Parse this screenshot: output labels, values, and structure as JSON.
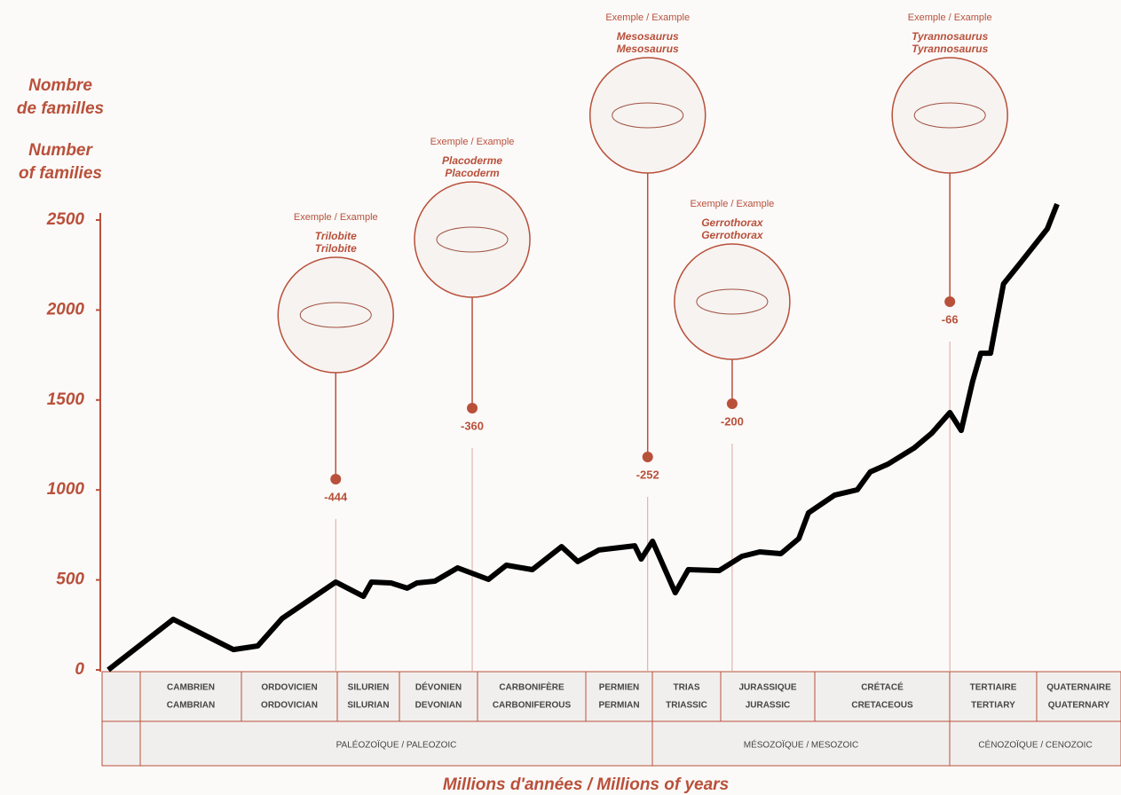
{
  "chart_data": {
    "type": "line",
    "y_label_fr": [
      "Nombre",
      "de familles"
    ],
    "y_label_en": [
      "Number",
      "of families"
    ],
    "x_label": "Millions d'années / Millions of years",
    "ylim": [
      0,
      2500
    ],
    "yticks": [
      0,
      500,
      1000,
      1500,
      2000,
      2500
    ],
    "xlim": [
      -584,
      0
    ],
    "color": "#000000",
    "x": [
      -584,
      -544,
      -507,
      -492,
      -477,
      -444,
      -427,
      -422,
      -410,
      -400,
      -394,
      -383,
      -369,
      -350,
      -339,
      -323,
      -305,
      -295,
      -282,
      -260,
      -256,
      -249,
      -235,
      -227,
      -208,
      -194,
      -183,
      -170,
      -159,
      -153,
      -137,
      -123,
      -115,
      -104,
      -88,
      -77,
      -66,
      -59,
      -52,
      -47,
      -41,
      -33,
      -22,
      -6,
      0
    ],
    "values": [
      0,
      281,
      113,
      133,
      286,
      488,
      409,
      488,
      483,
      454,
      483,
      493,
      567,
      503,
      582,
      557,
      685,
      602,
      666,
      690,
      616,
      715,
      429,
      557,
      552,
      631,
      656,
      646,
      730,
      873,
      971,
      1001,
      1100,
      1144,
      1233,
      1317,
      1430,
      1331,
      1603,
      1760,
      1760,
      2145,
      2268,
      2451,
      2589
    ],
    "events": [
      {
        "x": -444,
        "example": "Exemple / Example",
        "name_fr": "Trilobite",
        "name_en": "Trilobite"
      },
      {
        "x": -360,
        "example": "Exemple / Example",
        "name_fr": "Placoderme",
        "name_en": "Placoderm"
      },
      {
        "x": -252,
        "example": "Exemple / Example",
        "name_fr": "Mesosaurus",
        "name_en": "Mesosaurus"
      },
      {
        "x": -200,
        "example": "Exemple / Example",
        "name_fr": "Gerrothorax",
        "name_en": "Gerrothorax"
      },
      {
        "x": -66,
        "example": "Exemple / Example",
        "name_fr": "Tyrannosaurus",
        "name_en": "Tyrannosaurus"
      }
    ],
    "periods": [
      [
        "CAMBRIEN",
        "CAMBRIAN"
      ],
      [
        "ORDOVICIEN",
        "ORDOVICIAN"
      ],
      [
        "SILURIEN",
        "SILURIAN"
      ],
      [
        "DÉVONIEN",
        "DEVONIAN"
      ],
      [
        "CARBONIFÈRE",
        "CARBONIFEROUS"
      ],
      [
        "PERMIEN",
        "PERMIAN"
      ],
      [
        "TRIAS",
        "TRIASSIC"
      ],
      [
        "JURASSIQUE",
        "JURASSIC"
      ],
      [
        "CRÉTACÉ",
        "CRETACEOUS"
      ],
      [
        "TERTIAIRE",
        "TERTIARY"
      ],
      [
        "QUATERNAIRE",
        "QUATERNARY"
      ]
    ],
    "eras": [
      "PALÉOZOÏQUE / PALEOZOIC",
      "MÉSOZOÏQUE / MESOZOIC",
      "CÉNOZOÏQUE / CENOZOIC"
    ]
  }
}
